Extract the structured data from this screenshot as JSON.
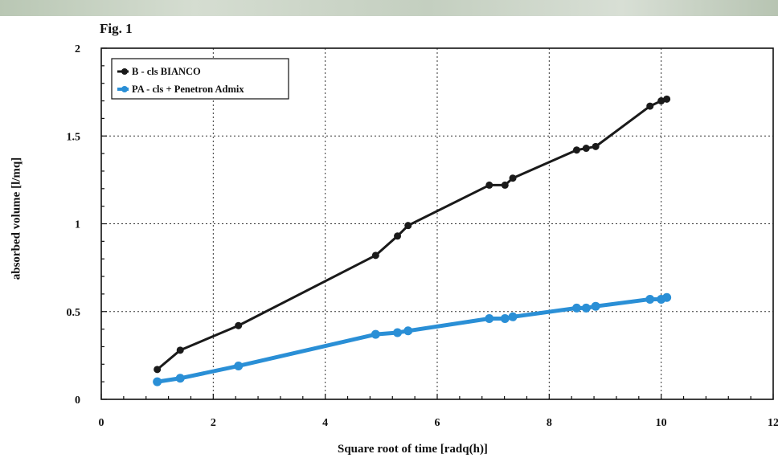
{
  "figure": {
    "label": "Fig. 1"
  },
  "chart_data": {
    "type": "line",
    "xlabel": "Square root of time [radq(h)]",
    "ylabel": "absorbed volume [l/mq]",
    "xlim": [
      0,
      12
    ],
    "ylim": [
      0,
      2
    ],
    "xticks": [
      0,
      2,
      4,
      6,
      8,
      10,
      12
    ],
    "yticks": [
      0,
      0.5,
      1,
      1.5,
      2
    ],
    "xtick_labels": [
      "0",
      "2",
      "4",
      "6",
      "8",
      "10",
      "12"
    ],
    "ytick_labels": [
      "0",
      "0.5",
      "1",
      "1.5",
      "2"
    ],
    "grid": true,
    "legend_position": "top-left",
    "series": [
      {
        "name": "B - cls BIANCO",
        "color": "#1a1a1a",
        "x": [
          1.0,
          1.41,
          2.45,
          4.9,
          5.29,
          5.48,
          6.93,
          7.21,
          7.35,
          8.49,
          8.66,
          8.83,
          9.8,
          10.0,
          10.1
        ],
        "y": [
          0.17,
          0.28,
          0.42,
          0.82,
          0.93,
          0.99,
          1.22,
          1.22,
          1.26,
          1.42,
          1.43,
          1.44,
          1.67,
          1.7,
          1.71
        ]
      },
      {
        "name": "PA - cls + Penetron Admix",
        "color": "#2a8fd6",
        "x": [
          1.0,
          1.41,
          2.45,
          4.9,
          5.29,
          5.48,
          6.93,
          7.21,
          7.35,
          8.49,
          8.66,
          8.83,
          9.8,
          10.0,
          10.1
        ],
        "y": [
          0.1,
          0.12,
          0.19,
          0.37,
          0.38,
          0.39,
          0.46,
          0.46,
          0.47,
          0.52,
          0.52,
          0.53,
          0.57,
          0.57,
          0.58
        ]
      }
    ]
  }
}
